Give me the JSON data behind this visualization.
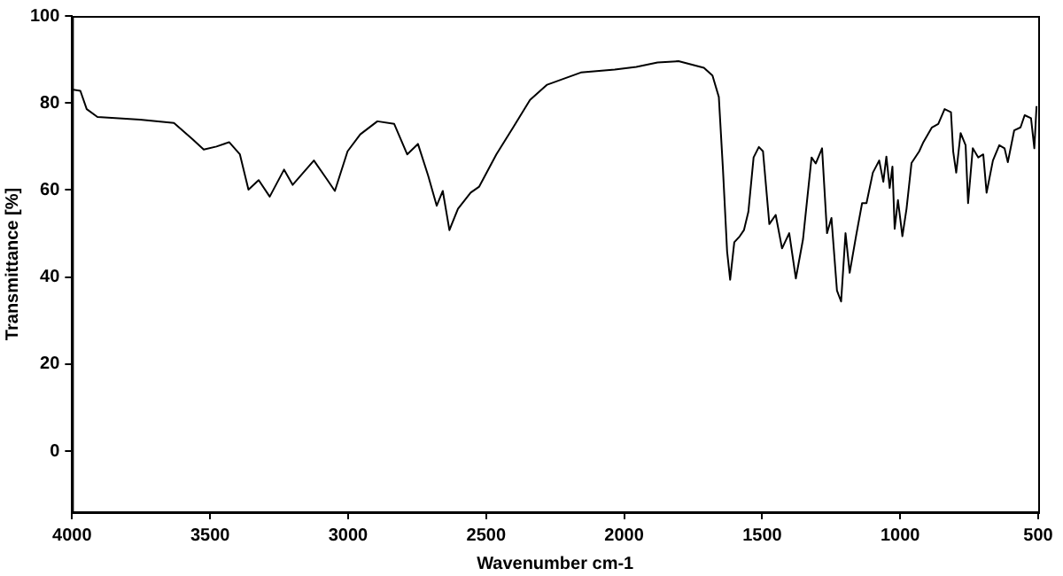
{
  "chart_data": {
    "type": "line",
    "xlabel": "Wavenumber cm-1",
    "ylabel": "Transmittance [%]",
    "xlim": [
      4000,
      500
    ],
    "xticks": [
      4000,
      3500,
      3000,
      2500,
      2000,
      1500,
      1000,
      500
    ],
    "ylim": [
      -14,
      100
    ],
    "yticks": [
      0,
      20,
      40,
      60,
      80,
      100
    ],
    "grid": false,
    "legend": false,
    "marker": "none",
    "line_style": "solid",
    "series": [
      {
        "color": "#000000",
        "x": [
          4000,
          3970,
          3947,
          3908,
          3754,
          3631,
          3564,
          3523,
          3477,
          3431,
          3392,
          3361,
          3324,
          3284,
          3232,
          3201,
          3124,
          3078,
          3048,
          3002,
          2956,
          2894,
          2833,
          2786,
          2747,
          2710,
          2679,
          2657,
          2633,
          2602,
          2556,
          2525,
          2463,
          2402,
          2341,
          2279,
          2157,
          2034,
          1956,
          1879,
          1803,
          1711,
          1680,
          1657,
          1642,
          1627,
          1616,
          1601,
          1581,
          1566,
          1550,
          1531,
          1512,
          1497,
          1474,
          1451,
          1428,
          1402,
          1378,
          1352,
          1321,
          1306,
          1283,
          1265,
          1249,
          1229,
          1214,
          1198,
          1183,
          1160,
          1138,
          1122,
          1099,
          1076,
          1061,
          1050,
          1038,
          1028,
          1020,
          1008,
          992,
          977,
          959,
          931,
          916,
          885,
          862,
          839,
          816,
          808,
          797,
          781,
          763,
          754,
          737,
          717,
          699,
          687,
          664,
          641,
          622,
          610,
          587,
          564,
          549,
          526,
          514,
          506
        ],
        "values": [
          83.1,
          82.8,
          78.6,
          76.8,
          76.2,
          75.4,
          71.7,
          69.3,
          70,
          71,
          68.2,
          60.1,
          62.3,
          58.5,
          64.7,
          61.2,
          66.8,
          62.6,
          59.8,
          68.9,
          72.8,
          75.8,
          75.2,
          68.2,
          70.6,
          63.3,
          56.4,
          59.8,
          50.8,
          55.7,
          59.4,
          60.8,
          68.2,
          74.4,
          80.7,
          84.2,
          87,
          87.7,
          88.3,
          89.3,
          89.6,
          88.1,
          86.3,
          81.4,
          64.7,
          45.9,
          39.4,
          48,
          49.4,
          50.8,
          55,
          67.5,
          69.9,
          68.9,
          52.2,
          54.3,
          46.6,
          50.1,
          39.7,
          48.7,
          67.5,
          66.1,
          69.6,
          50.1,
          53.6,
          36.9,
          34.4,
          50.1,
          41,
          49.4,
          57,
          57,
          64,
          66.8,
          61.9,
          67.7,
          60.5,
          65.4,
          51.1,
          57.7,
          49.4,
          55.7,
          66.2,
          68.9,
          71,
          74.4,
          75.2,
          78.6,
          77.9,
          68.9,
          64,
          73.1,
          70.3,
          57,
          69.6,
          67.5,
          68.2,
          59.4,
          66.8,
          70.3,
          69.6,
          66.4,
          73.7,
          74.4,
          77.2,
          76.5,
          69.6,
          79.3
        ]
      }
    ]
  }
}
